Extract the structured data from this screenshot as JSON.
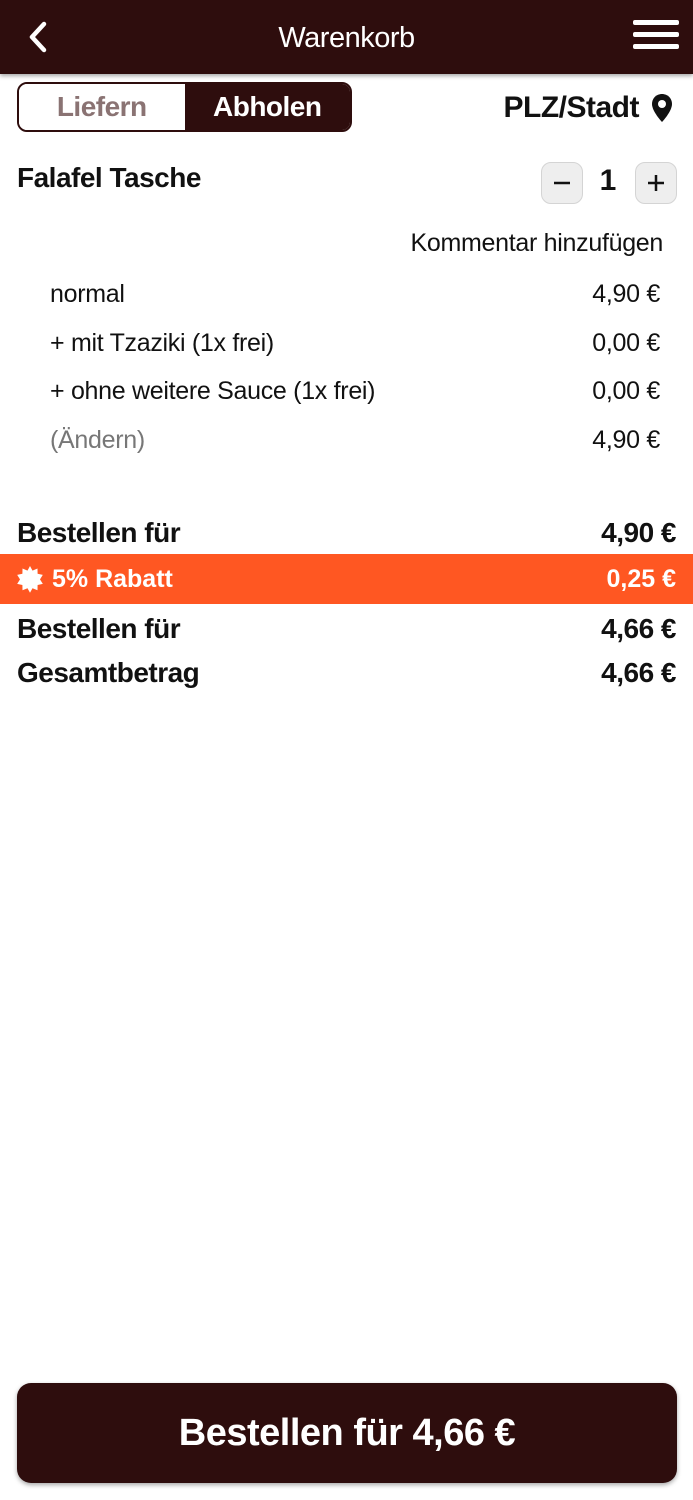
{
  "header": {
    "title": "Warenkorb",
    "back_icon": "chevron-left-icon",
    "menu_icon": "hamburger-menu-icon",
    "background": "#2e0d0d"
  },
  "mode_toggle": {
    "options": [
      "Liefern",
      "Abholen"
    ],
    "selected": "Abholen"
  },
  "location": {
    "label": "PLZ/Stadt",
    "icon": "map-pin-icon"
  },
  "cart_item": {
    "name": "Falafel Tasche",
    "quantity": "1",
    "decrease_icon": "minus-icon",
    "increase_icon": "plus-icon",
    "comment_link": "Kommentar hinzufügen",
    "details": [
      {
        "label": "normal",
        "price": "4,90 €"
      },
      {
        "label": "+ mit Tzaziki (1x frei)",
        "price": "0,00 €"
      },
      {
        "label": "+ ohne weitere Sauce (1x frei)",
        "price": "0,00 €"
      },
      {
        "label": "(Ändern)",
        "price": "4,90 €"
      }
    ]
  },
  "summary": {
    "subtotal_label": "Bestellen für",
    "subtotal_value": "4,90 €",
    "discount_label": "5% Rabatt",
    "discount_value": "0,25 €",
    "discount_icon": "discount-badge-icon",
    "discount_color": "#ff5722",
    "after_discount_label": "Bestellen für",
    "after_discount_value": "4,66 €",
    "total_label": "Gesamtbetrag",
    "total_value": "4,66 €"
  },
  "order_button": {
    "label": "Bestellen für 4,66 €"
  }
}
